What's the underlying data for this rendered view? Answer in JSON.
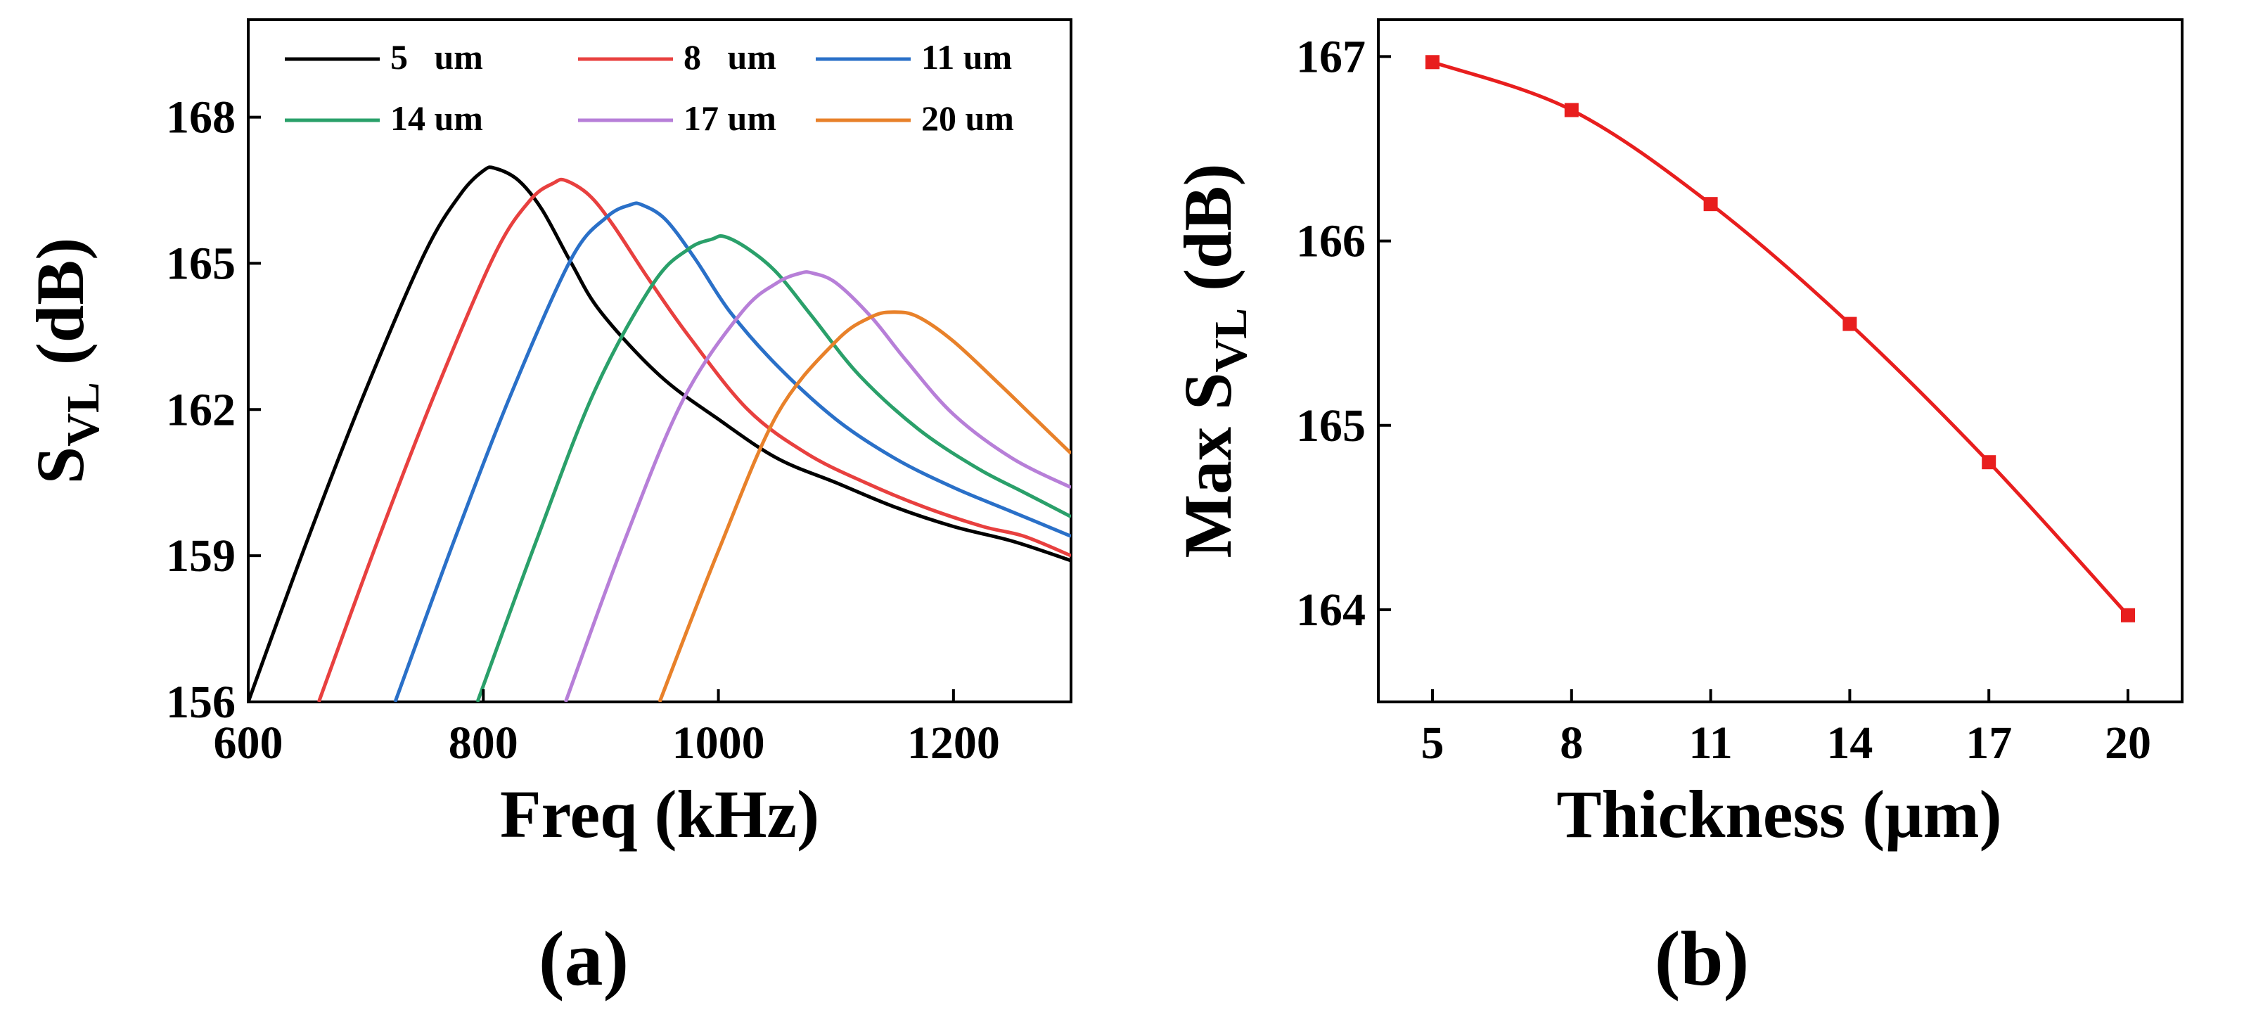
{
  "chart_data": [
    {
      "panel_label": "(a)",
      "type": "line",
      "title": "",
      "xlabel": "Freq (kHz)",
      "ylabel": {
        "main": "S",
        "sub": "VL",
        "unit": " (dB)"
      },
      "xlim": [
        600,
        1300
      ],
      "ylim": [
        156,
        170
      ],
      "xticks": [
        600,
        800,
        1000,
        1200
      ],
      "yticks": [
        156,
        159,
        162,
        165,
        168
      ],
      "grid": false,
      "legend_position": "top",
      "series": [
        {
          "name": "5   um",
          "color": "#000000",
          "x": [
            600,
            650,
            700,
            750,
            780,
            800,
            810,
            830,
            850,
            875,
            900,
            950,
            1000,
            1050,
            1100,
            1150,
            1200,
            1250,
            1300
          ],
          "y": [
            156.0,
            159.3,
            162.4,
            165.2,
            166.4,
            166.9,
            166.95,
            166.7,
            166.1,
            165.0,
            164.0,
            162.7,
            161.8,
            161.0,
            160.5,
            160.0,
            159.6,
            159.3,
            158.9
          ]
        },
        {
          "name": "8   um",
          "color": "#e8403f",
          "x": [
            660,
            710,
            760,
            810,
            840,
            860,
            870,
            890,
            910,
            940,
            975,
            1025,
            1075,
            1125,
            1175,
            1225,
            1260,
            1300
          ],
          "y": [
            156.0,
            159.3,
            162.4,
            165.2,
            166.3,
            166.65,
            166.7,
            166.4,
            165.8,
            164.7,
            163.5,
            162.0,
            161.1,
            160.5,
            160.0,
            159.6,
            159.4,
            159.0
          ]
        },
        {
          "name": "11 um",
          "color": "#2a70c8",
          "x": [
            725,
            775,
            825,
            875,
            905,
            925,
            935,
            955,
            980,
            1010,
            1050,
            1100,
            1150,
            1200,
            1250,
            1300
          ],
          "y": [
            156.0,
            159.3,
            162.4,
            165.1,
            165.95,
            166.2,
            166.2,
            165.9,
            165.1,
            164.0,
            162.9,
            161.8,
            161.0,
            160.4,
            159.9,
            159.4
          ]
        },
        {
          "name": "14 um",
          "color": "#2aa06a",
          "x": [
            795,
            845,
            895,
            945,
            975,
            995,
            1005,
            1025,
            1050,
            1080,
            1120,
            1170,
            1220,
            1260,
            1300
          ],
          "y": [
            156.0,
            159.3,
            162.4,
            164.6,
            165.3,
            165.5,
            165.55,
            165.3,
            164.8,
            163.9,
            162.7,
            161.6,
            160.8,
            160.3,
            159.8
          ]
        },
        {
          "name": "17 um",
          "color": "#b77fd8",
          "x": [
            870,
            920,
            970,
            1020,
            1050,
            1070,
            1080,
            1100,
            1130,
            1160,
            1200,
            1250,
            1300
          ],
          "y": [
            156.0,
            159.3,
            162.2,
            164.0,
            164.6,
            164.8,
            164.8,
            164.6,
            163.9,
            163.0,
            161.9,
            161.0,
            160.4
          ]
        },
        {
          "name": "20 um",
          "color": "#e8812a",
          "x": [
            950,
            1000,
            1050,
            1100,
            1130,
            1150,
            1170,
            1200,
            1240,
            1270,
            1300
          ],
          "y": [
            156.0,
            159.1,
            161.9,
            163.4,
            163.9,
            164.0,
            163.9,
            163.4,
            162.5,
            161.8,
            161.1
          ]
        }
      ]
    },
    {
      "panel_label": "(b)",
      "type": "line",
      "title": "",
      "xlabel": "Thickness (μm)",
      "ylabel": {
        "main": "Max S",
        "sub": "VL",
        "unit": " (dB)"
      },
      "ylim": [
        163.5,
        167.2
      ],
      "xticks": [
        5,
        8,
        11,
        14,
        17,
        20
      ],
      "yticks": [
        164,
        165,
        166,
        167
      ],
      "grid": false,
      "series": [
        {
          "name": "",
          "color": "#e81e1e",
          "marker": "square",
          "x": [
            5,
            8,
            11,
            14,
            17,
            20
          ],
          "y": [
            166.97,
            166.71,
            166.2,
            165.55,
            164.8,
            163.97
          ]
        }
      ]
    }
  ]
}
